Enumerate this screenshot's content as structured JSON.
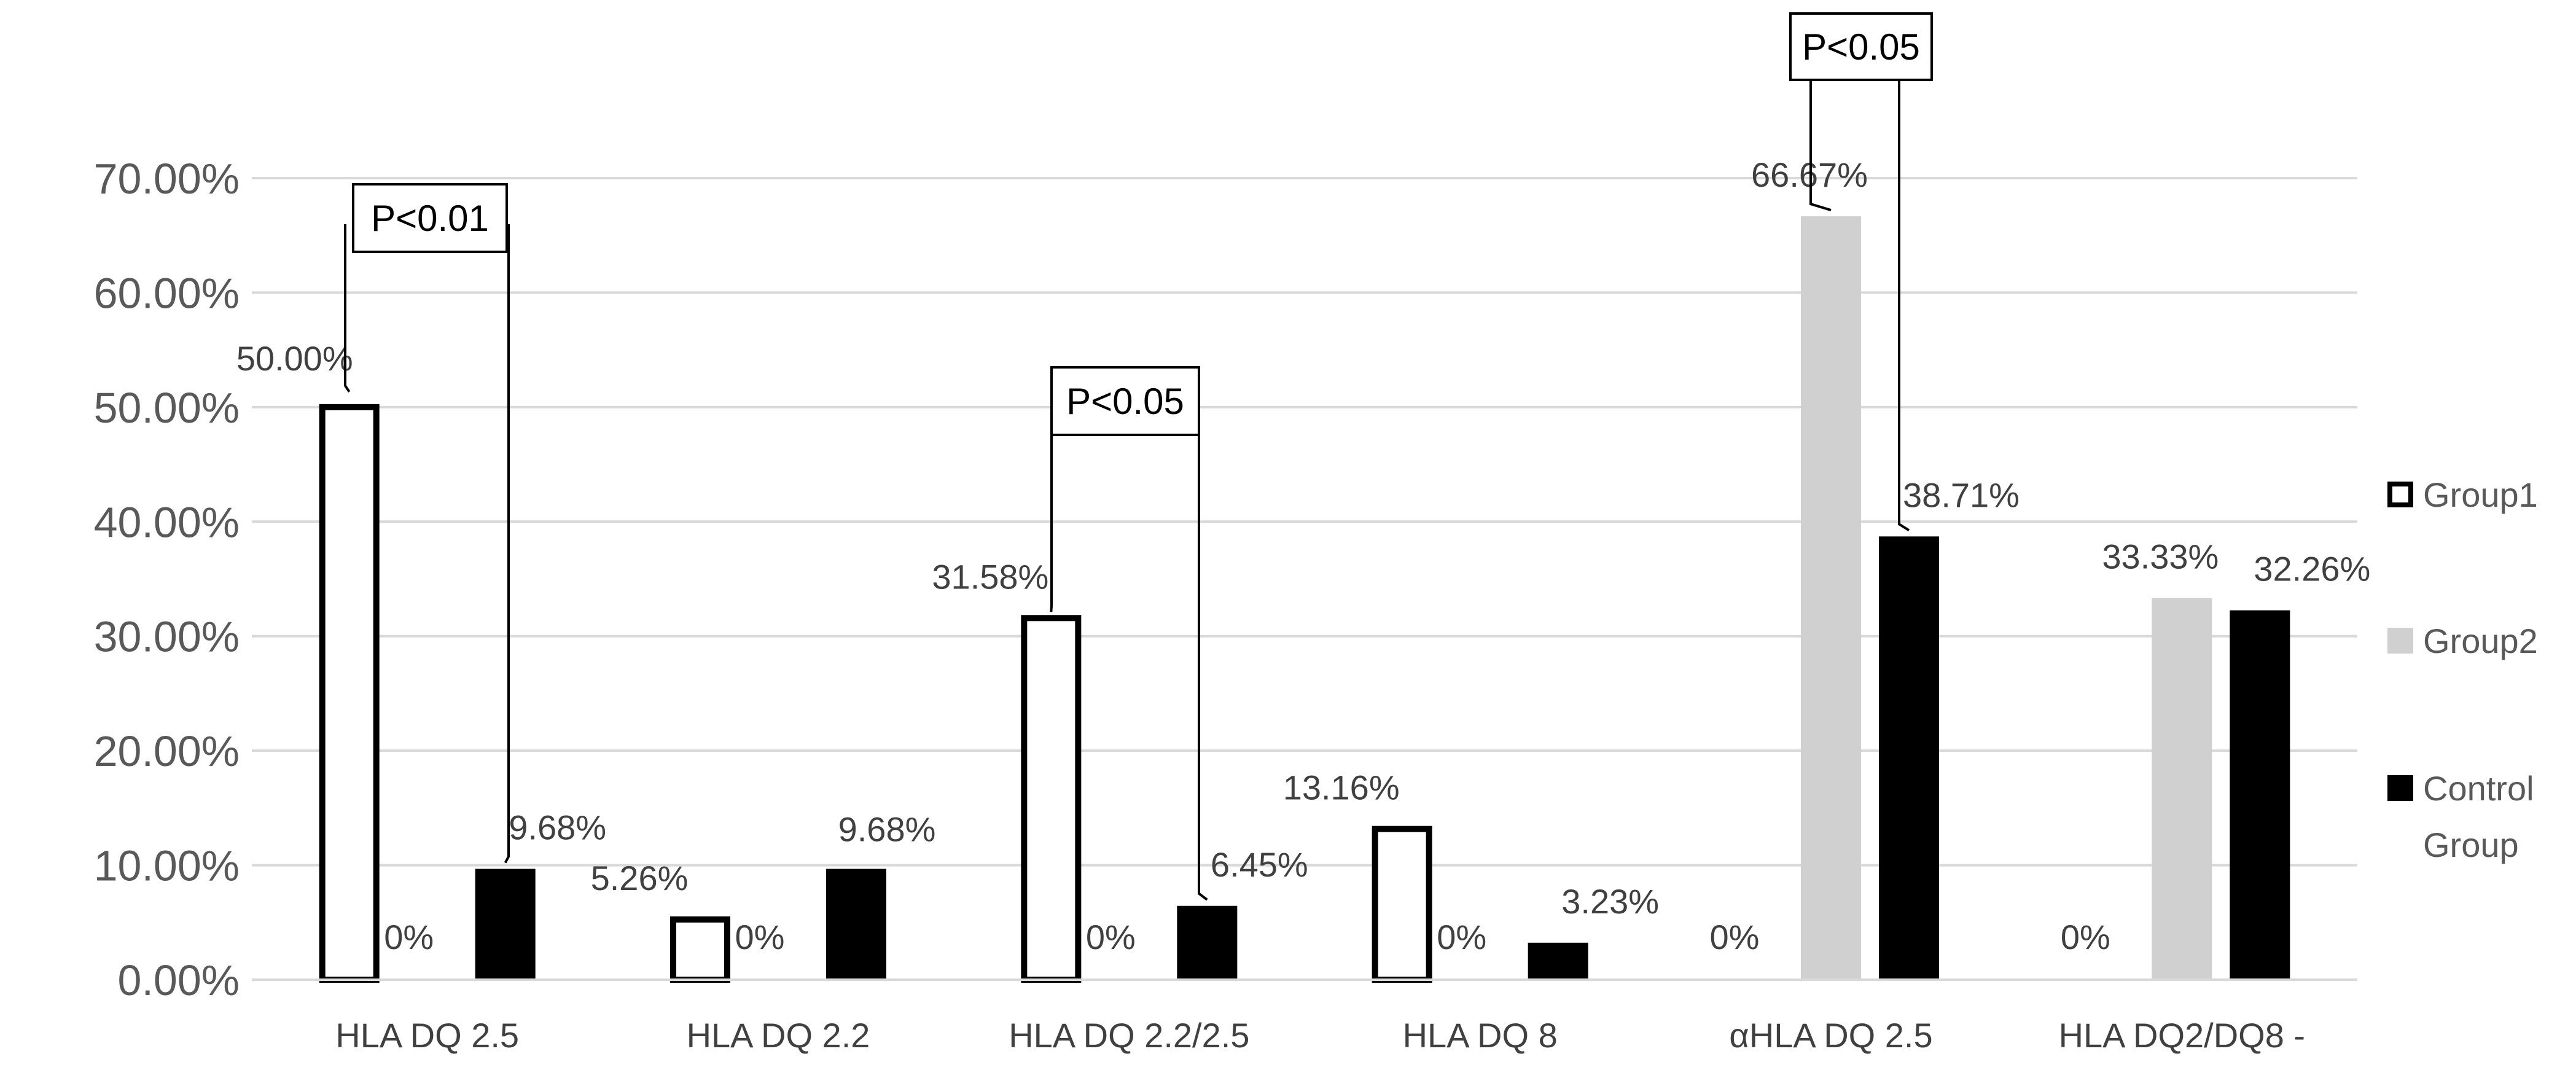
{
  "chart_data": {
    "type": "bar",
    "categories": [
      "HLA DQ 2.5",
      "HLA DQ 2.2",
      "HLA DQ 2.2/2.5",
      "HLA DQ 8",
      "αHLA DQ 2.5",
      "HLA DQ2/DQ8 -"
    ],
    "series": [
      {
        "name": "Group1",
        "color": "#ffffff",
        "stroke": "#000000",
        "values": [
          50.0,
          5.26,
          31.58,
          13.16,
          0,
          0
        ],
        "labels": [
          "50.00%",
          "5.26%",
          "31.58%",
          "13.16%",
          "0%",
          "0%"
        ]
      },
      {
        "name": "Group2",
        "color": "#d0d0d0",
        "stroke": "none",
        "values": [
          0,
          0,
          0,
          0,
          66.67,
          33.33
        ],
        "labels": [
          "0%",
          "0%",
          "0%",
          "0%",
          "66.67%",
          "33.33%"
        ]
      },
      {
        "name": "Control Group",
        "color": "#000000",
        "stroke": "none",
        "values": [
          9.68,
          9.68,
          6.45,
          3.23,
          38.71,
          32.26
        ],
        "labels": [
          "9.68%",
          "9.68%",
          "6.45%",
          "3.23%",
          "38.71%",
          "32.26%"
        ]
      }
    ],
    "yticks": [
      0,
      10,
      20,
      30,
      40,
      50,
      60,
      70
    ],
    "ytick_labels": [
      "0.00%",
      "10.00%",
      "20.00%",
      "30.00%",
      "40.00%",
      "50.00%",
      "60.00%",
      "70.00%"
    ],
    "ylim": [
      0,
      70
    ],
    "grid": true,
    "legend_position": "right",
    "legend_labels": [
      "Group1",
      "Group2",
      "Control",
      "Group"
    ],
    "annotations": [
      {
        "text": "P<0.01",
        "category": 0,
        "from_series": 0,
        "to_series": 2
      },
      {
        "text": "P<0.05",
        "category": 2,
        "from_series": 0,
        "to_series": 2
      },
      {
        "text": "P<0.05",
        "category": 4,
        "from_series": 1,
        "to_series": 2
      }
    ]
  }
}
